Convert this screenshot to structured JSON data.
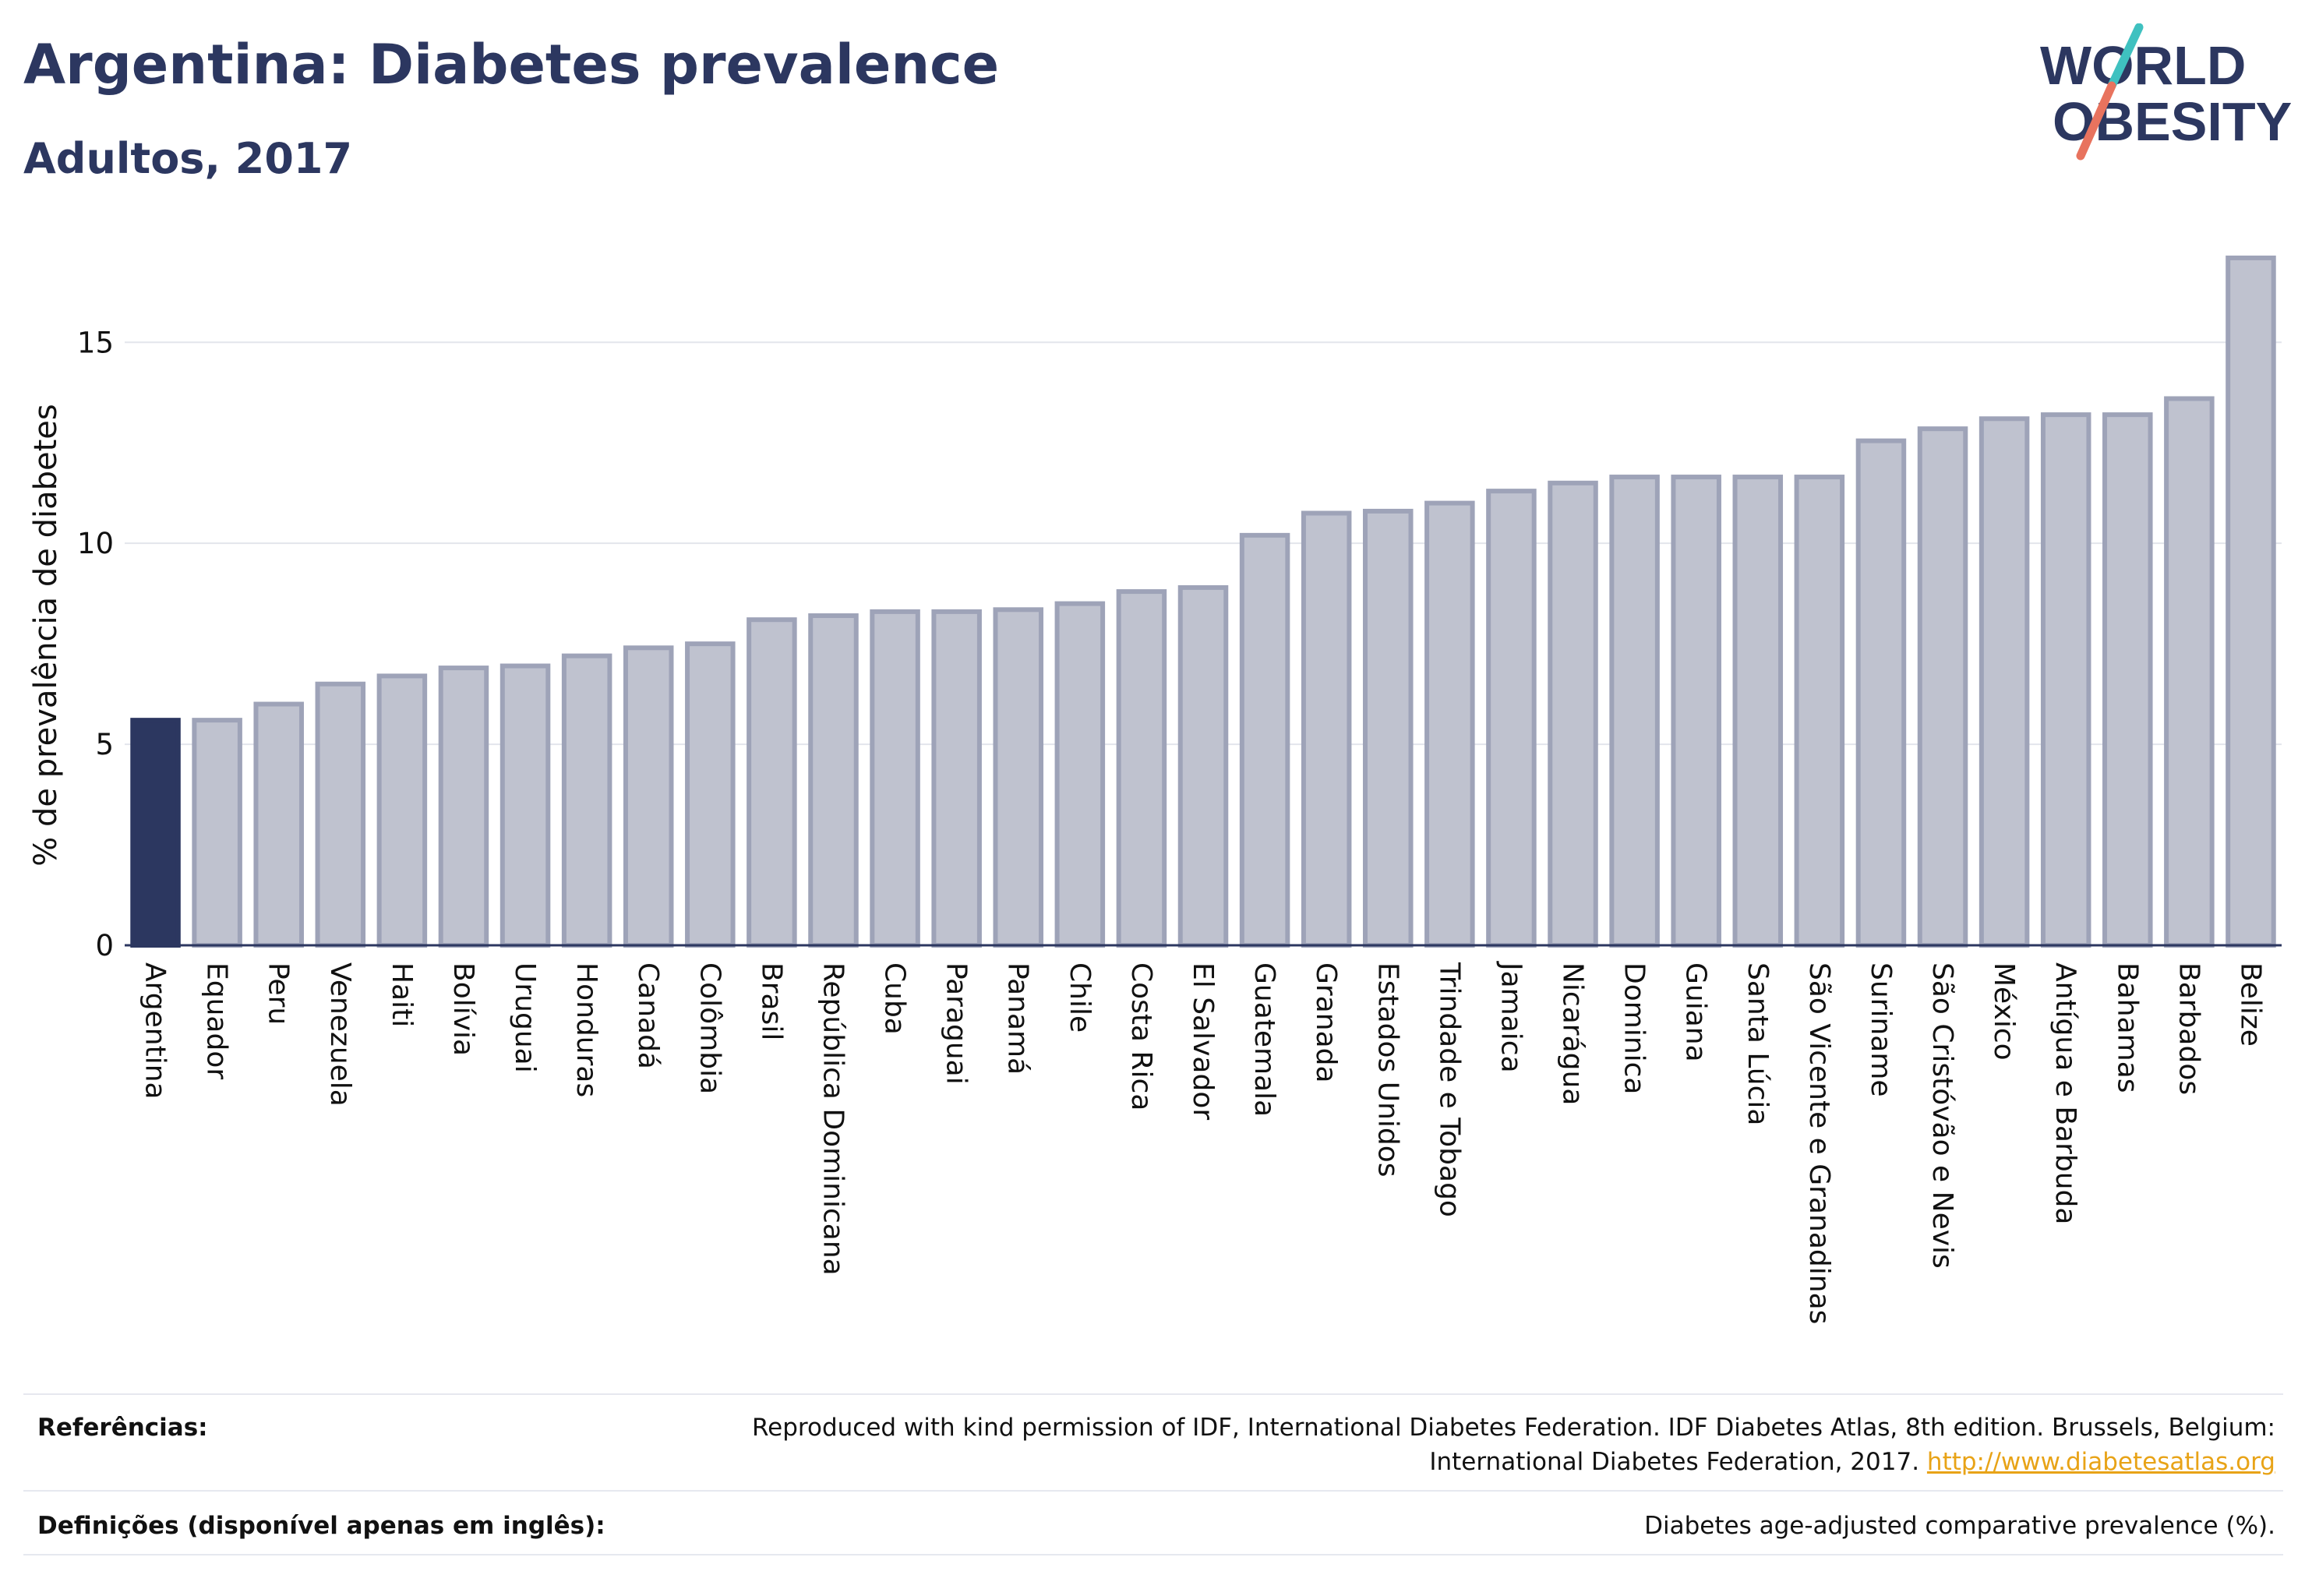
{
  "header": {
    "title": "Argentina: Diabetes prevalence",
    "subtitle": "Adultos, 2017"
  },
  "logo": {
    "line1": "WORLD",
    "line2": "OBESITY",
    "slash_color_top": "#3fc1c0",
    "slash_color_bottom": "#e8735e"
  },
  "chart_data": {
    "type": "bar",
    "ylabel": "% de prevalência de diabetes",
    "ylim": [
      0,
      17.7
    ],
    "yticks": [
      0,
      5,
      10,
      15
    ],
    "grid": true,
    "highlight": "Argentina",
    "highlight_color": "#2c3760",
    "bar_color": "#bfc2cf",
    "bar_edge_color": "#9ea3b8",
    "categories": [
      "Argentina",
      "Equador",
      "Peru",
      "Venezuela",
      "Haiti",
      "Bolívia",
      "Uruguai",
      "Honduras",
      "Canadá",
      "Colômbia",
      "Brasil",
      "República Dominicana",
      "Cuba",
      "Paraguai",
      "Panamá",
      "Chile",
      "Costa Rica",
      "El Salvador",
      "Guatemala",
      "Granada",
      "Estados Unidos",
      "Trindade e Tobago",
      "Jamaica",
      "Nicarágua",
      "Dominica",
      "Guiana",
      "Santa Lúcia",
      "São Vicente e Granadinas",
      "Suriname",
      "São Cristóvão e Nevis",
      "México",
      "Antígua e Barbuda",
      "Bahamas",
      "Barbados",
      "Belize"
    ],
    "values": [
      5.6,
      5.6,
      6.0,
      6.5,
      6.7,
      6.9,
      6.95,
      7.2,
      7.4,
      7.5,
      8.1,
      8.2,
      8.3,
      8.3,
      8.35,
      8.5,
      8.8,
      8.9,
      10.2,
      10.75,
      10.8,
      11.0,
      11.3,
      11.5,
      11.65,
      11.65,
      11.65,
      11.65,
      12.55,
      12.85,
      13.1,
      13.2,
      13.2,
      13.6,
      17.1
    ]
  },
  "footer": {
    "references_label": "Referências:",
    "references_text_1": "Reproduced with kind permission of IDF, International Diabetes Federation. IDF Diabetes Atlas, 8th edition. Brussels, Belgium:",
    "references_text_2": "International Diabetes Federation, 2017.",
    "references_link": "http://www.diabetesatlas.org",
    "definitions_label": "Definições (disponível apenas em inglês):",
    "definitions_text": "Diabetes age-adjusted comparative prevalence (%)."
  }
}
